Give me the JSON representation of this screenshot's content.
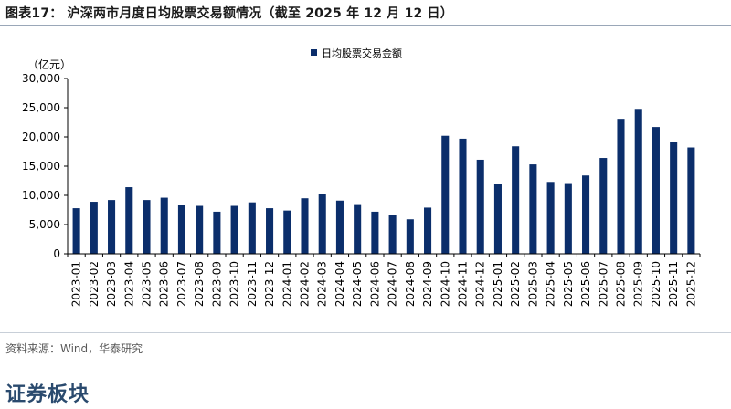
{
  "title": "图表17：   沪深两市月度日均股票交易额情况（截至 2025 年 12 月 12 日）",
  "source": "资料来源：Wind，华泰研究",
  "section_heading": "证券板块",
  "colors": {
    "bar": "#0b2e6b",
    "axis": "#000000",
    "title_rule": "#9aa7b8"
  },
  "chart_data": {
    "type": "bar",
    "unit_label": "（亿元）",
    "legend": "日均股票交易金额",
    "legend_position": "top-center",
    "grid": false,
    "ylim": [
      0,
      30000
    ],
    "yticks": [
      "0",
      "5,000",
      "10,000",
      "15,000",
      "20,000",
      "25,000",
      "30,000"
    ],
    "ytick_values": [
      0,
      5000,
      10000,
      15000,
      20000,
      25000,
      30000
    ],
    "categories": [
      "2023-01",
      "2023-02",
      "2023-03",
      "2023-04",
      "2023-05",
      "2023-06",
      "2023-07",
      "2023-08",
      "2023-09",
      "2023-10",
      "2023-11",
      "2023-12",
      "2024-01",
      "2024-02",
      "2024-03",
      "2024-04",
      "2024-05",
      "2024-06",
      "2024-07",
      "2024-08",
      "2024-09",
      "2024-10",
      "2024-11",
      "2024-12",
      "2025-01",
      "2025-02",
      "2025-03",
      "2025-04",
      "2025-05",
      "2025-06",
      "2025-07",
      "2025-08",
      "2025-09",
      "2025-10",
      "2025-11",
      "2025-12"
    ],
    "values": [
      7800,
      8900,
      9200,
      11400,
      9200,
      9600,
      8400,
      8200,
      7200,
      8200,
      8800,
      7800,
      7400,
      9500,
      10200,
      9100,
      8500,
      7200,
      6600,
      5900,
      7900,
      20200,
      19700,
      16100,
      12000,
      18400,
      15300,
      12300,
      12100,
      13400,
      16400,
      23100,
      24800,
      21700,
      19100,
      18200
    ]
  }
}
